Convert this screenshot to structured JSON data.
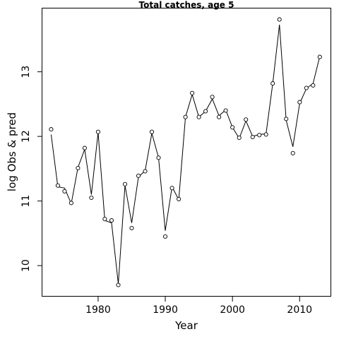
{
  "chart_data": {
    "type": "line",
    "title": "Total catches, age 5",
    "xlabel": "Year",
    "ylabel": "log Obs & pred",
    "xlim": [
      1971.7,
      2014.6
    ],
    "ylim": [
      9.52,
      13.98
    ],
    "x_ticks": [
      1980,
      1990,
      2000,
      2010
    ],
    "y_ticks": [
      10,
      11,
      12,
      13
    ],
    "series": [
      {
        "style": "points",
        "x": [
          1973,
          1974,
          1975,
          1976,
          1977,
          1978,
          1979,
          1980,
          1981,
          1982,
          1983,
          1984,
          1985,
          1986,
          1987,
          1988,
          1989,
          1990,
          1991,
          1992,
          1993,
          1994,
          1995,
          1996,
          1997,
          1998,
          1999,
          2000,
          2001,
          2002,
          2003,
          2004,
          2005,
          2006,
          2007,
          2008,
          2009,
          2010,
          2011,
          2012,
          2013
        ],
        "y": [
          12.11,
          11.24,
          11.15,
          10.97,
          11.51,
          11.82,
          11.05,
          12.07,
          10.72,
          10.7,
          9.7,
          11.26,
          10.58,
          11.39,
          11.46,
          12.07,
          11.67,
          10.45,
          11.2,
          11.03,
          12.3,
          12.67,
          12.3,
          12.39,
          12.61,
          12.3,
          12.4,
          12.14,
          11.98,
          12.26,
          11.99,
          12.02,
          12.03,
          12.82,
          13.81,
          12.27,
          11.74,
          12.53,
          12.75,
          12.79,
          13.23
        ]
      },
      {
        "style": "line",
        "x": [
          1973,
          1974,
          1975,
          1976,
          1977,
          1978,
          1979,
          1980,
          1981,
          1982,
          1983,
          1984,
          1985,
          1986,
          1987,
          1988,
          1989,
          1990,
          1991,
          1992,
          1993,
          1994,
          1995,
          1996,
          1997,
          1998,
          1999,
          2000,
          2001,
          2002,
          2003,
          2004,
          2005,
          2006,
          2007,
          2008,
          2009,
          2010,
          2011,
          2012,
          2013
        ],
        "y": [
          12.03,
          11.22,
          11.2,
          10.96,
          11.52,
          11.8,
          11.1,
          12.06,
          10.7,
          10.66,
          9.72,
          11.24,
          10.66,
          11.37,
          11.47,
          12.05,
          11.67,
          10.54,
          11.22,
          11.02,
          12.3,
          12.65,
          12.3,
          12.39,
          12.58,
          12.32,
          12.41,
          12.14,
          11.97,
          12.24,
          12.0,
          12.03,
          12.04,
          12.82,
          13.73,
          12.25,
          11.84,
          12.51,
          12.74,
          12.82,
          13.24
        ]
      }
    ]
  }
}
